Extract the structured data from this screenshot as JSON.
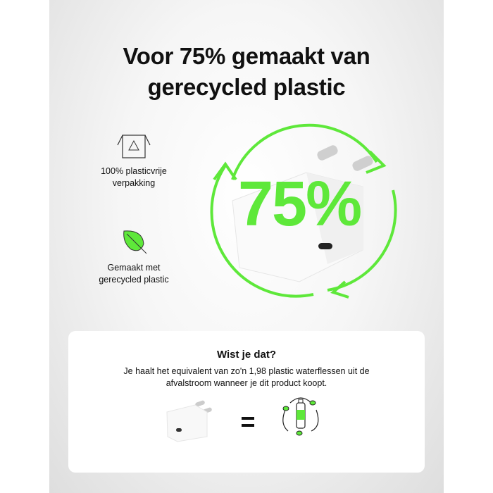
{
  "headline": "Voor 75% gemaakt van gerecycled plastic",
  "headline_lines": [
    "Voor 75% gemaakt van",
    "gerecycled plastic"
  ],
  "features": [
    {
      "icon": "recycle-box-icon",
      "lines": [
        "100% plasticvrije",
        "verpakking"
      ]
    },
    {
      "icon": "leaf-icon",
      "lines": [
        "Gemaakt met",
        "gerecycled plastic"
      ]
    }
  ],
  "big_percent": "75%",
  "accent_color": "#5ee83a",
  "info_card": {
    "title": "Wist je dat?",
    "text_lines": [
      "Je haalt het equivalent van zo'n 1,98 plastic waterflessen uit de",
      "afvalstroom wanneer je dit product koopt."
    ],
    "equals_icon": "equals-icon",
    "bottle_icon": "recycled-bottle-icon"
  }
}
